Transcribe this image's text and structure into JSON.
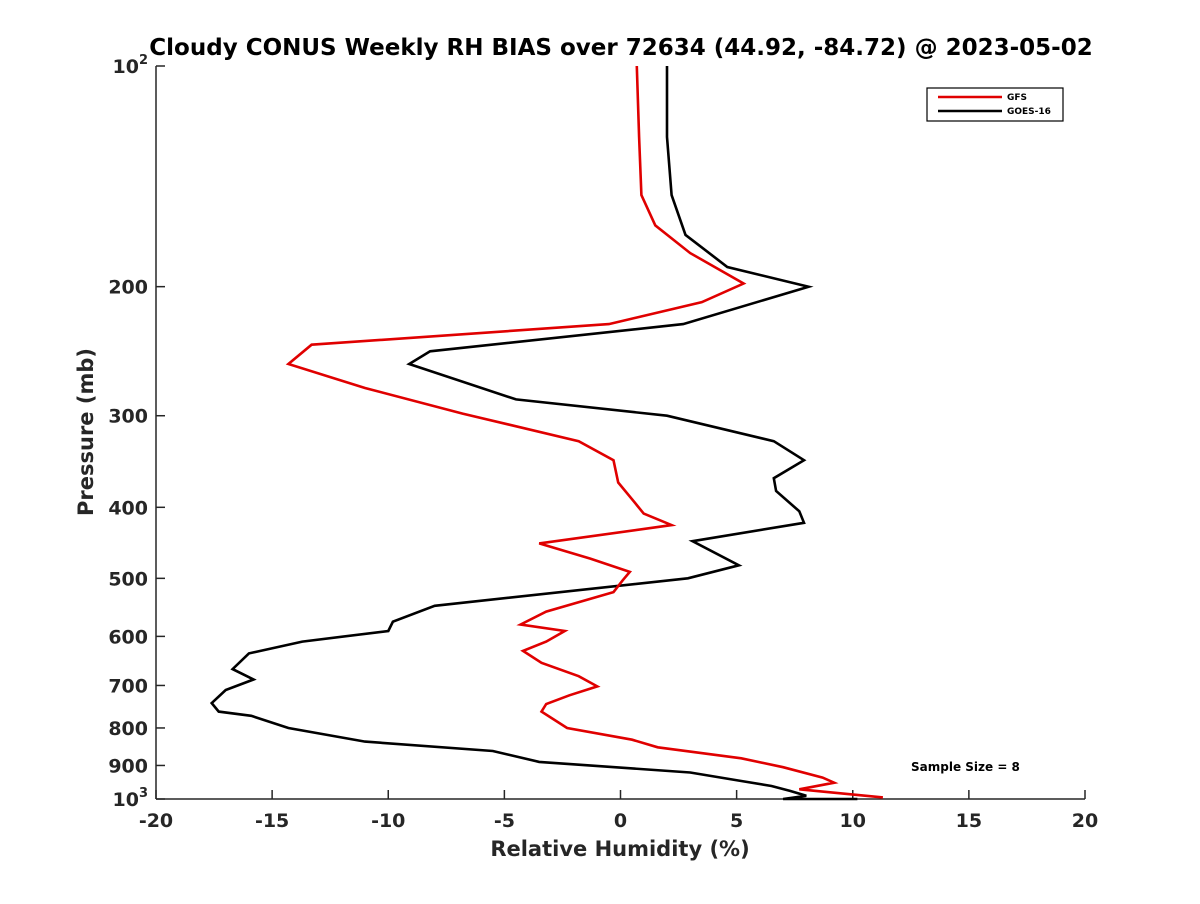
{
  "chart_data": {
    "type": "line",
    "title": "Cloudy CONUS Weekly RH BIAS over 72634 (44.92, -84.72) @ 2023-05-02",
    "xlabel": "Relative Humidity (%)",
    "ylabel": "Pressure (mb)",
    "xlim": [
      -20,
      20
    ],
    "ylim": [
      100,
      1000
    ],
    "y_scale": "log",
    "y_reversed": true,
    "grid": false,
    "legend_position": "top-right",
    "x_ticks": [
      -20,
      -15,
      -10,
      -5,
      0,
      5,
      10,
      15,
      20
    ],
    "x_tick_labels": [
      "-20",
      "-15",
      "-10",
      "-5",
      "0",
      "5",
      "10",
      "15",
      "20"
    ],
    "y_ticks": [
      200,
      300,
      400,
      500,
      600,
      700,
      800,
      900
    ],
    "y_tick_labels": [
      "200",
      "300",
      "400",
      "500",
      "600",
      "700",
      "800",
      "900"
    ],
    "y_limit_labels": [
      {
        "value": 100,
        "base": "10",
        "exp": "2"
      },
      {
        "value": 1000,
        "base": "10",
        "exp": "3"
      }
    ],
    "annotation": "Sample Size = 8",
    "series": [
      {
        "name": "GFS",
        "color": "#e00000",
        "points": [
          [
            0.7,
            100
          ],
          [
            0.8,
            125
          ],
          [
            0.9,
            150
          ],
          [
            1.5,
            165
          ],
          [
            3.0,
            180
          ],
          [
            5.3,
            198
          ],
          [
            3.5,
            210
          ],
          [
            -0.5,
            225
          ],
          [
            -13.3,
            240
          ],
          [
            -14.3,
            255
          ],
          [
            -11.0,
            275
          ],
          [
            -6.8,
            298
          ],
          [
            -1.8,
            325
          ],
          [
            -0.3,
            345
          ],
          [
            -0.1,
            370
          ],
          [
            0.5,
            390
          ],
          [
            1.0,
            408
          ],
          [
            2.2,
            423
          ],
          [
            -3.5,
            448
          ],
          [
            -1.3,
            470
          ],
          [
            0.4,
            490
          ],
          [
            0.1,
            503
          ],
          [
            -0.3,
            522
          ],
          [
            -3.2,
            555
          ],
          [
            -4.3,
            578
          ],
          [
            -2.4,
            590
          ],
          [
            -3.2,
            610
          ],
          [
            -4.2,
            628
          ],
          [
            -3.4,
            652
          ],
          [
            -1.8,
            680
          ],
          [
            -1.0,
            702
          ],
          [
            -2.2,
            722
          ],
          [
            -3.2,
            742
          ],
          [
            -3.4,
            760
          ],
          [
            -2.3,
            800
          ],
          [
            0.5,
            830
          ],
          [
            1.6,
            850
          ],
          [
            5.2,
            880
          ],
          [
            7.0,
            905
          ],
          [
            8.7,
            935
          ],
          [
            9.2,
            950
          ],
          [
            7.7,
            970
          ],
          [
            11.3,
            995
          ]
        ]
      },
      {
        "name": "GOES-16",
        "color": "#000000",
        "points": [
          [
            2.0,
            100
          ],
          [
            2.0,
            125
          ],
          [
            2.2,
            150
          ],
          [
            2.8,
            170
          ],
          [
            4.6,
            188
          ],
          [
            8.1,
            200
          ],
          [
            2.7,
            225
          ],
          [
            -8.2,
            245
          ],
          [
            -9.1,
            255
          ],
          [
            -4.5,
            285
          ],
          [
            2.0,
            300
          ],
          [
            6.6,
            325
          ],
          [
            7.9,
            345
          ],
          [
            6.6,
            365
          ],
          [
            6.7,
            380
          ],
          [
            7.7,
            405
          ],
          [
            7.9,
            420
          ],
          [
            3.1,
            445
          ],
          [
            5.1,
            480
          ],
          [
            2.9,
            500
          ],
          [
            -8.0,
            545
          ],
          [
            -9.8,
            573
          ],
          [
            -10.0,
            590
          ],
          [
            -13.7,
            610
          ],
          [
            -16.0,
            633
          ],
          [
            -16.7,
            665
          ],
          [
            -15.8,
            687
          ],
          [
            -17.0,
            710
          ],
          [
            -17.6,
            740
          ],
          [
            -17.3,
            760
          ],
          [
            -15.9,
            770
          ],
          [
            -14.3,
            800
          ],
          [
            -11.0,
            835
          ],
          [
            -5.5,
            860
          ],
          [
            -3.5,
            890
          ],
          [
            3.0,
            920
          ],
          [
            5.2,
            945
          ],
          [
            6.5,
            960
          ],
          [
            7.3,
            975
          ],
          [
            8.0,
            990
          ],
          [
            7.0,
            1000
          ],
          [
            10.2,
            1000
          ]
        ]
      }
    ]
  }
}
